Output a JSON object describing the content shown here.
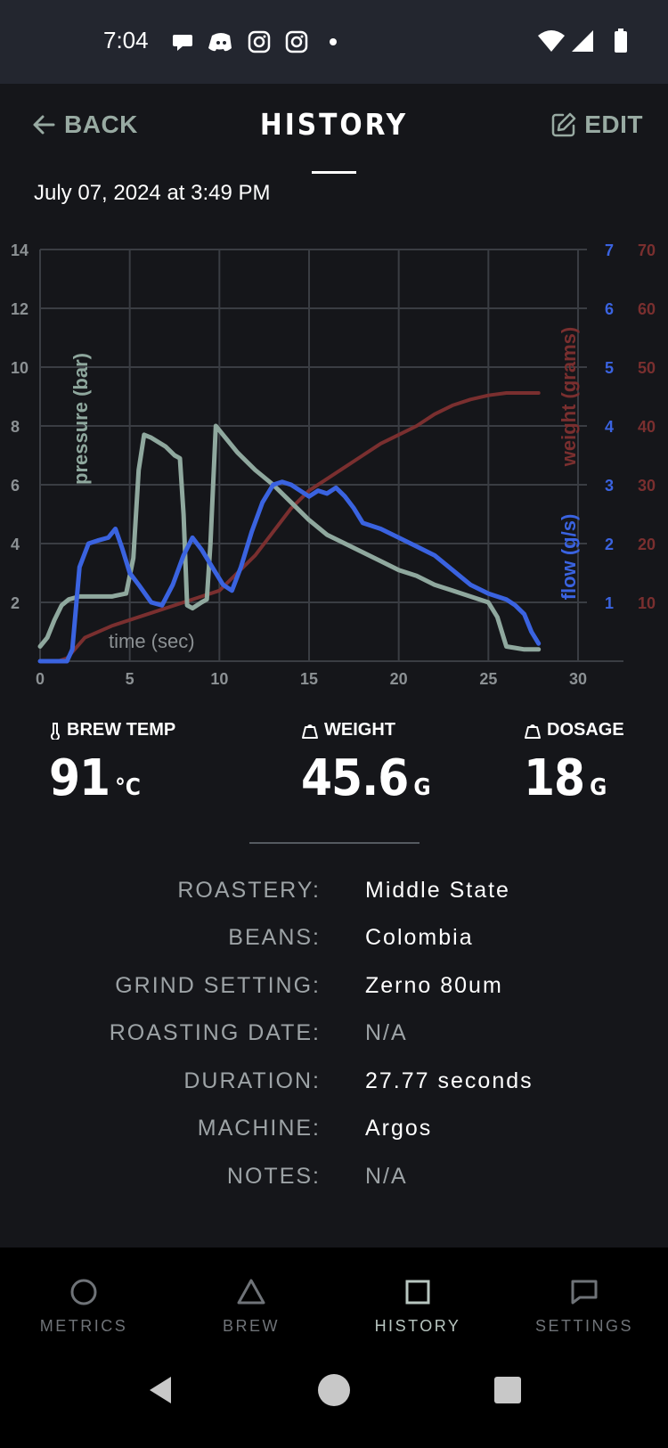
{
  "status_bar": {
    "time": "7:04",
    "left_icons": [
      "chat-bubble-icon",
      "discord-icon",
      "instagram-icon",
      "instagram-icon",
      "dot-icon"
    ],
    "right_icons": [
      "wifi-icon",
      "signal-icon",
      "battery-icon"
    ]
  },
  "header": {
    "back_label": "BACK",
    "title": "HISTORY",
    "edit_label": "EDIT"
  },
  "shot": {
    "date": "July 07, 2024 at 3:49 PM"
  },
  "chart_data": {
    "type": "line",
    "xlabel": "time (sec)",
    "ylabel_left": "pressure (bar)",
    "ylabel_right_flow": "flow (g/s)",
    "ylabel_right_weight": "weight (grams)",
    "x_ticks": [
      "0",
      "5",
      "10",
      "15",
      "20",
      "25",
      "30"
    ],
    "y_left_ticks": [
      "2",
      "4",
      "6",
      "8",
      "10",
      "12",
      "14"
    ],
    "y_flow_ticks": [
      "1",
      "2",
      "3",
      "4",
      "5",
      "6",
      "7"
    ],
    "y_weight_ticks": [
      "10",
      "20",
      "30",
      "40",
      "50",
      "60",
      "70"
    ],
    "xlim": [
      0,
      30
    ],
    "ylim_left": [
      0,
      14
    ],
    "ylim_flow": [
      0,
      7
    ],
    "ylim_weight": [
      0,
      70
    ],
    "grid": true,
    "colors": {
      "pressure": "#8fa89e",
      "flow": "#3a63e0",
      "weight": "#7a2f2f"
    },
    "series": [
      {
        "name": "pressure (bar)",
        "axis": "pressure",
        "x": [
          0,
          0.4,
          0.8,
          1.2,
          1.6,
          2.2,
          3,
          4,
          4.8,
          5.2,
          5.5,
          5.8,
          6.2,
          7,
          7.5,
          7.8,
          8,
          8.2,
          8.5,
          9,
          9.3,
          9.5,
          9.8,
          10.2,
          11,
          12,
          13,
          14,
          15,
          16,
          17,
          18,
          19,
          20,
          21,
          22,
          23,
          24,
          25,
          25.5,
          26,
          26.5,
          27,
          27.8
        ],
        "y": [
          0.5,
          0.8,
          1.4,
          1.9,
          2.1,
          2.2,
          2.2,
          2.2,
          2.3,
          3.5,
          6.5,
          7.7,
          7.6,
          7.3,
          7.0,
          6.9,
          5.0,
          1.9,
          1.8,
          2.0,
          2.1,
          4.0,
          8.0,
          7.7,
          7.1,
          6.5,
          6.0,
          5.4,
          4.8,
          4.3,
          4.0,
          3.7,
          3.4,
          3.1,
          2.9,
          2.6,
          2.4,
          2.2,
          2.0,
          1.5,
          0.5,
          0.45,
          0.4,
          0.4
        ]
      },
      {
        "name": "flow (g/s)",
        "axis": "flow",
        "x": [
          0,
          1.5,
          1.8,
          2.2,
          2.7,
          3.2,
          3.8,
          4.2,
          4.6,
          5.0,
          5.5,
          6.2,
          6.8,
          7.4,
          8.0,
          8.5,
          9.0,
          9.6,
          10.2,
          10.7,
          11.2,
          11.8,
          12.4,
          13.0,
          13.5,
          14.0,
          14.5,
          15.0,
          15.5,
          16.0,
          16.5,
          17.0,
          17.5,
          18.0,
          19.0,
          20.0,
          21.0,
          22.0,
          23.0,
          24.0,
          25.0,
          26.0,
          26.5,
          27.0,
          27.4,
          27.8
        ],
        "y": [
          0,
          0,
          0.2,
          1.6,
          2.0,
          2.05,
          2.1,
          2.25,
          1.9,
          1.5,
          1.3,
          1.0,
          0.95,
          1.3,
          1.8,
          2.1,
          1.9,
          1.6,
          1.3,
          1.2,
          1.6,
          2.2,
          2.7,
          3.0,
          3.05,
          3.0,
          2.9,
          2.8,
          2.9,
          2.85,
          2.95,
          2.8,
          2.6,
          2.35,
          2.25,
          2.1,
          1.95,
          1.8,
          1.55,
          1.3,
          1.15,
          1.05,
          0.95,
          0.8,
          0.5,
          0.3
        ]
      },
      {
        "name": "weight (grams)",
        "axis": "weight",
        "x": [
          0,
          1,
          1.5,
          2.5,
          4,
          6,
          8,
          10,
          11,
          12,
          13,
          14,
          15,
          16,
          17,
          18,
          19,
          20,
          21,
          22,
          23,
          24,
          25,
          26,
          27,
          27.8
        ],
        "y": [
          0,
          0,
          0.5,
          4,
          6,
          8,
          10,
          12,
          15,
          18,
          22,
          26,
          29,
          31,
          33,
          35,
          37,
          38.5,
          40,
          42,
          43.5,
          44.5,
          45.2,
          45.6,
          45.6,
          45.6
        ]
      }
    ]
  },
  "metrics": {
    "brew_temp": {
      "label": "BREW TEMP",
      "value": "91",
      "unit": "°C"
    },
    "weight": {
      "label": "WEIGHT",
      "value": "45.6",
      "unit": "G"
    },
    "dosage": {
      "label": "DOSAGE",
      "value": "18",
      "unit": "G"
    }
  },
  "details": [
    {
      "label": "ROASTERY:",
      "value": "Middle State"
    },
    {
      "label": "BEANS:",
      "value": "Colombia"
    },
    {
      "label": "GRIND SETTING:",
      "value": "Zerno 80um"
    },
    {
      "label": "ROASTING DATE:",
      "value": "N/A"
    },
    {
      "label": "DURATION:",
      "value": "27.77 seconds"
    },
    {
      "label": "MACHINE:",
      "value": "Argos"
    },
    {
      "label": "NOTES:",
      "value": "N/A"
    }
  ],
  "bottom_nav": {
    "items": [
      {
        "label": "METRICS",
        "icon": "circle-icon"
      },
      {
        "label": "BREW",
        "icon": "triangle-icon"
      },
      {
        "label": "HISTORY",
        "icon": "square-icon",
        "active": true
      },
      {
        "label": "SETTINGS",
        "icon": "chat-bubble-icon"
      }
    ]
  },
  "system_nav": [
    "back-triangle-icon",
    "home-circle-icon",
    "recents-square-icon"
  ]
}
